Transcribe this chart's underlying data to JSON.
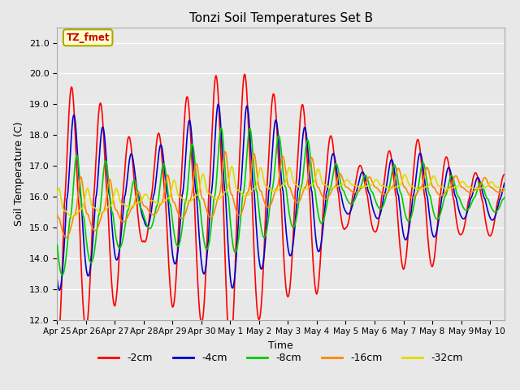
{
  "title": "Tonzi Soil Temperatures Set B",
  "xlabel": "Time",
  "ylabel": "Soil Temperature (C)",
  "ylim": [
    12.0,
    21.5
  ],
  "annotation_text": "TZ_fmet",
  "annotation_color": "#cc0000",
  "annotation_bg": "#ffffcc",
  "annotation_border": "#aaaa00",
  "bg_color": "#e8e8e8",
  "grid_color": "#ffffff",
  "colors": [
    "#ff0000",
    "#0000cc",
    "#00cc00",
    "#ff8800",
    "#dddd00"
  ],
  "labels": [
    "-2cm",
    "-4cm",
    "-8cm",
    "-16cm",
    "-32cm"
  ],
  "xtick_labels": [
    "Apr 25",
    "Apr 26",
    "Apr 27",
    "Apr 28",
    "Apr 29",
    "Apr 30",
    "May 1",
    "May 2",
    "May 3",
    "May 4",
    "May 5",
    "May 6",
    "May 7",
    "May 8",
    "May 9",
    "May 10"
  ],
  "ytick_values": [
    12.0,
    13.0,
    14.0,
    15.0,
    16.0,
    17.0,
    18.0,
    19.0,
    20.0,
    21.0
  ],
  "linewidth": 1.2
}
